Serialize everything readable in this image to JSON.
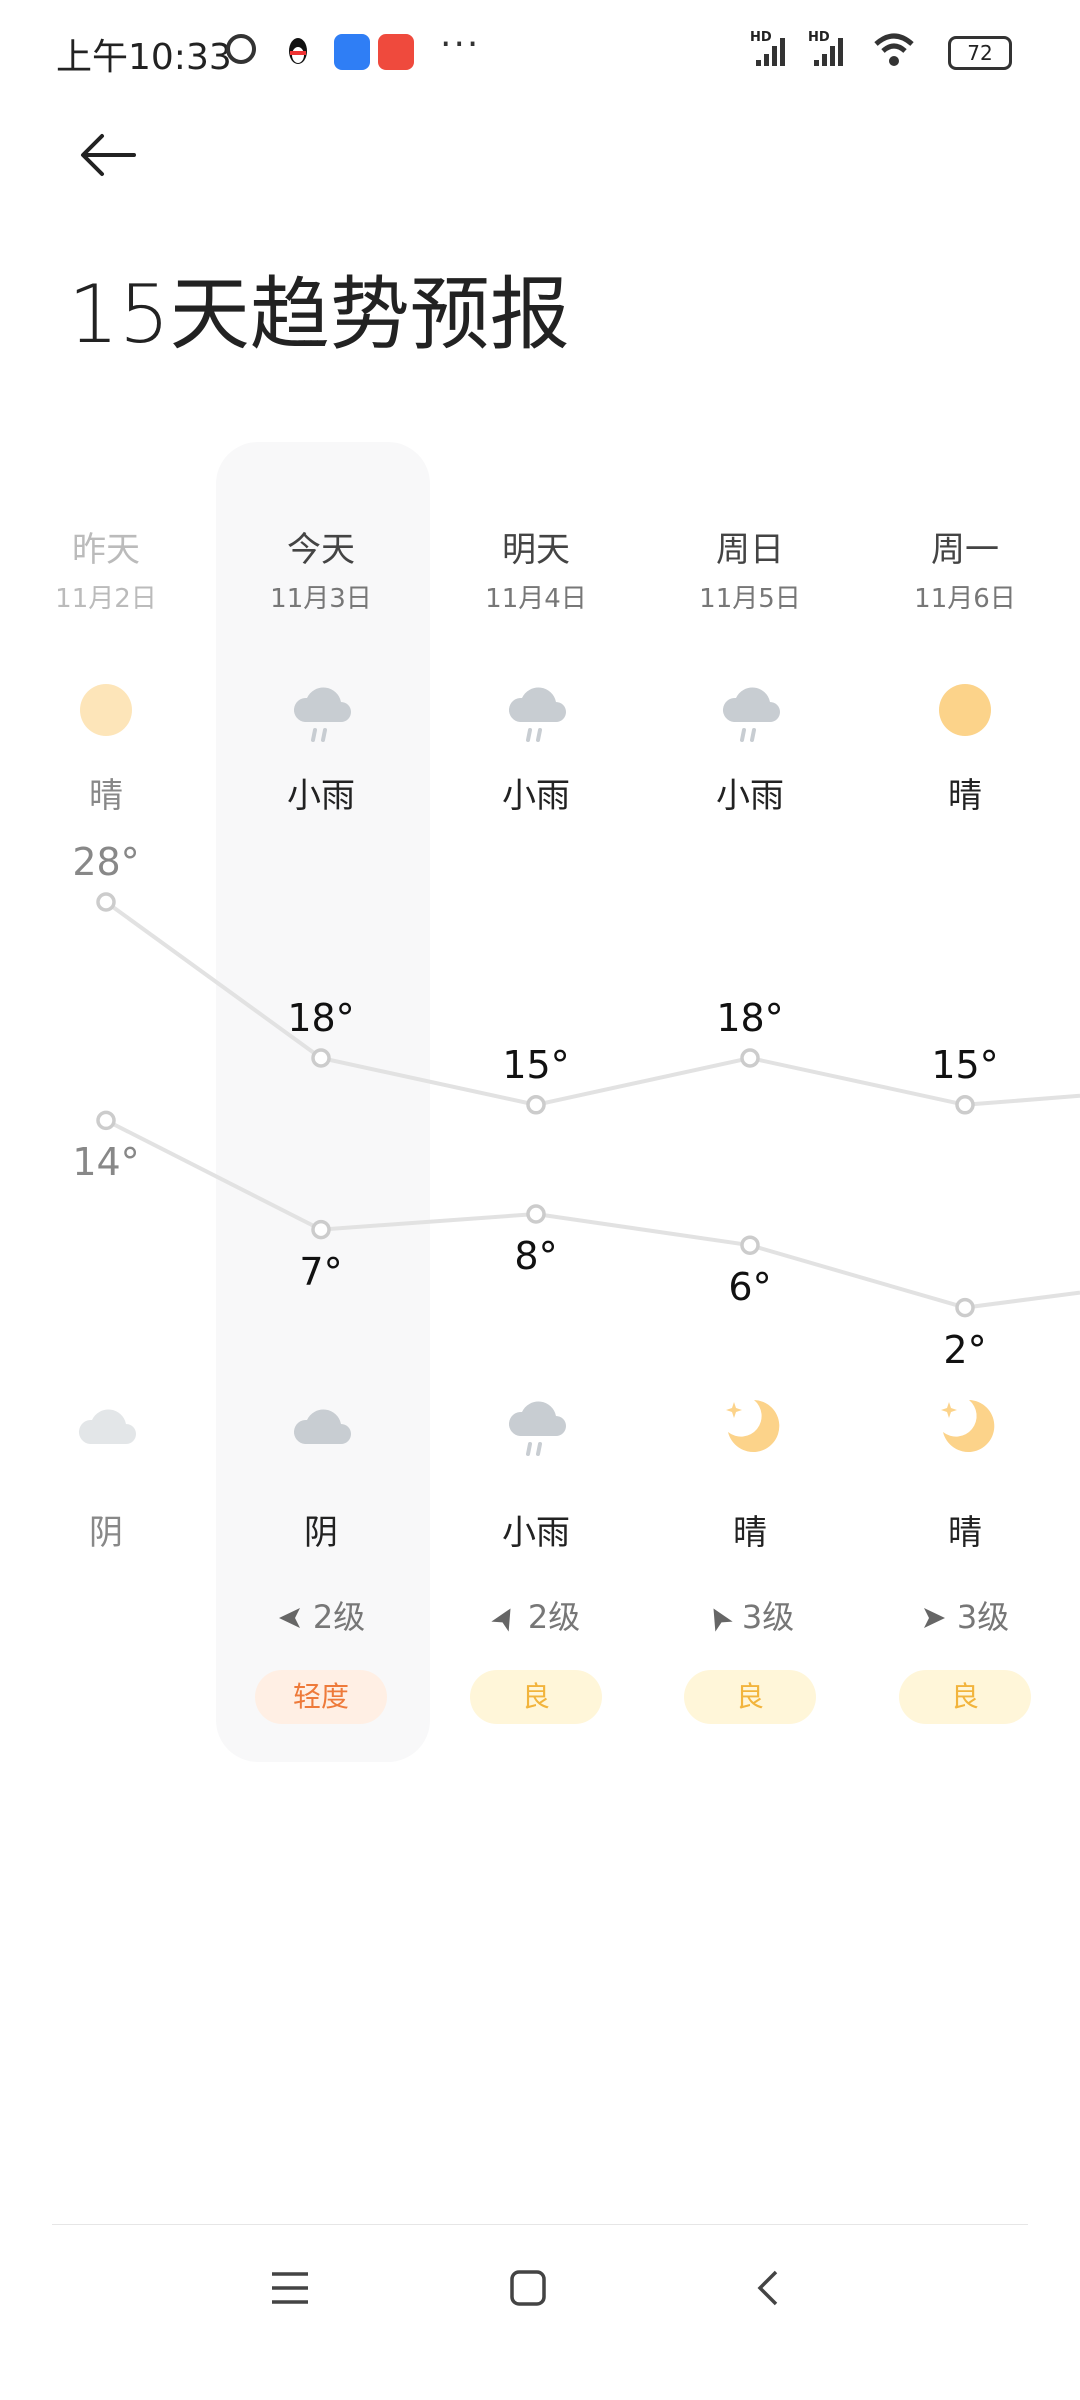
{
  "status_bar": {
    "time": "上午10:33",
    "more": "···",
    "battery": "72",
    "signal_labels": [
      "HD",
      "HD"
    ]
  },
  "header": {
    "title": "15天趋势预报"
  },
  "colors": {
    "sun": "#fcd38a",
    "cloud": "#c8cdd2",
    "aqi_light": "#ee7a3a",
    "aqi_light_bg": "#ffefe4",
    "aqi_good": "#f2b43c",
    "aqi_good_bg": "#fff6d9",
    "line": "#e2e2e2"
  },
  "days": [
    {
      "name": "昨天",
      "date": "11月2日",
      "day_icon": "sun-icon",
      "day_cond": "晴",
      "high": 28,
      "low": 14,
      "high_label": "28°",
      "low_label": "14°",
      "night_icon": "cloud-icon",
      "night_cond": "阴",
      "wind": "",
      "wind_dir": "",
      "aqi": "",
      "aqi_level": "",
      "faded": true
    },
    {
      "name": "今天",
      "date": "11月3日",
      "day_icon": "rain-cloud-icon",
      "day_cond": "小雨",
      "high": 18,
      "low": 7,
      "high_label": "18°",
      "low_label": "7°",
      "night_icon": "cloud-icon",
      "night_cond": "阴",
      "wind": "2级",
      "wind_dir": "west",
      "aqi": "轻度",
      "aqi_level": "light",
      "selected": true
    },
    {
      "name": "明天",
      "date": "11月4日",
      "day_icon": "rain-cloud-icon",
      "day_cond": "小雨",
      "high": 15,
      "low": 8,
      "high_label": "15°",
      "low_label": "8°",
      "night_icon": "rain-cloud-icon",
      "night_cond": "小雨",
      "wind": "2级",
      "wind_dir": "northeast",
      "aqi": "良",
      "aqi_level": "good"
    },
    {
      "name": "周日",
      "date": "11月5日",
      "day_icon": "rain-cloud-icon",
      "day_cond": "小雨",
      "high": 18,
      "low": 6,
      "high_label": "18°",
      "low_label": "6°",
      "night_icon": "moon-icon",
      "night_cond": "晴",
      "wind": "3级",
      "wind_dir": "northwest",
      "aqi": "良",
      "aqi_level": "good"
    },
    {
      "name": "周一",
      "date": "11月6日",
      "day_icon": "sun-icon",
      "day_cond": "晴",
      "high": 15,
      "low": 2,
      "high_label": "15°",
      "low_label": "2°",
      "night_icon": "moon-icon",
      "night_cond": "晴",
      "wind": "3级",
      "wind_dir": "east",
      "aqi": "良",
      "aqi_level": "good"
    }
  ]
}
